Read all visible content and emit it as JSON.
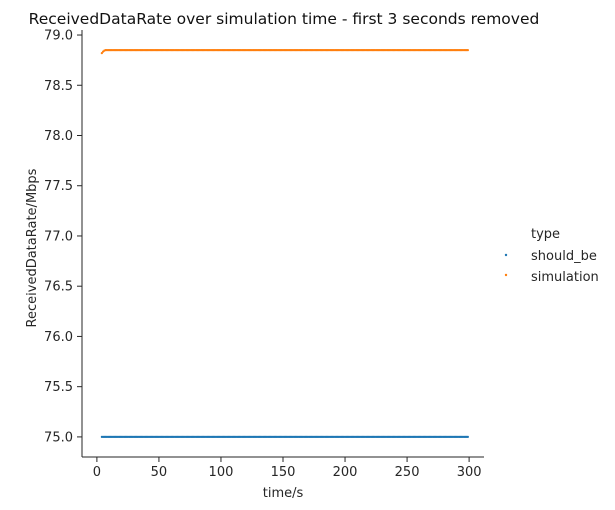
{
  "chart_data": {
    "type": "scatter",
    "title": "ReceivedDataRate over simulation time - first 3 seconds removed",
    "xlabel": "time/s",
    "ylabel": "ReceivedDataRate/Mbps",
    "xlim": [
      -12,
      312
    ],
    "ylim": [
      74.8,
      79.05
    ],
    "xticks": [
      0,
      50,
      100,
      150,
      200,
      250,
      300
    ],
    "yticks": [
      75.0,
      75.5,
      76.0,
      76.5,
      77.0,
      77.5,
      78.0,
      78.5,
      79.0
    ],
    "ytick_labels": [
      "75.0",
      "75.5",
      "76.0",
      "76.5",
      "77.0",
      "77.5",
      "78.0",
      "78.5",
      "79.0"
    ],
    "grid": false,
    "legend": {
      "title": "type",
      "placement": "right"
    },
    "series": [
      {
        "name": "should_be",
        "color": "#1f77b4",
        "x_start": 4,
        "x_end": 299,
        "x_step": 1,
        "y_constant": 75.0
      },
      {
        "name": "simulation",
        "color": "#ff7f0e",
        "x_start": 4,
        "x_end": 299,
        "x_step": 1,
        "y_constant": 78.85,
        "initial_points": [
          [
            4,
            78.82
          ],
          [
            5,
            78.835
          ],
          [
            6,
            78.845
          ]
        ]
      }
    ]
  }
}
